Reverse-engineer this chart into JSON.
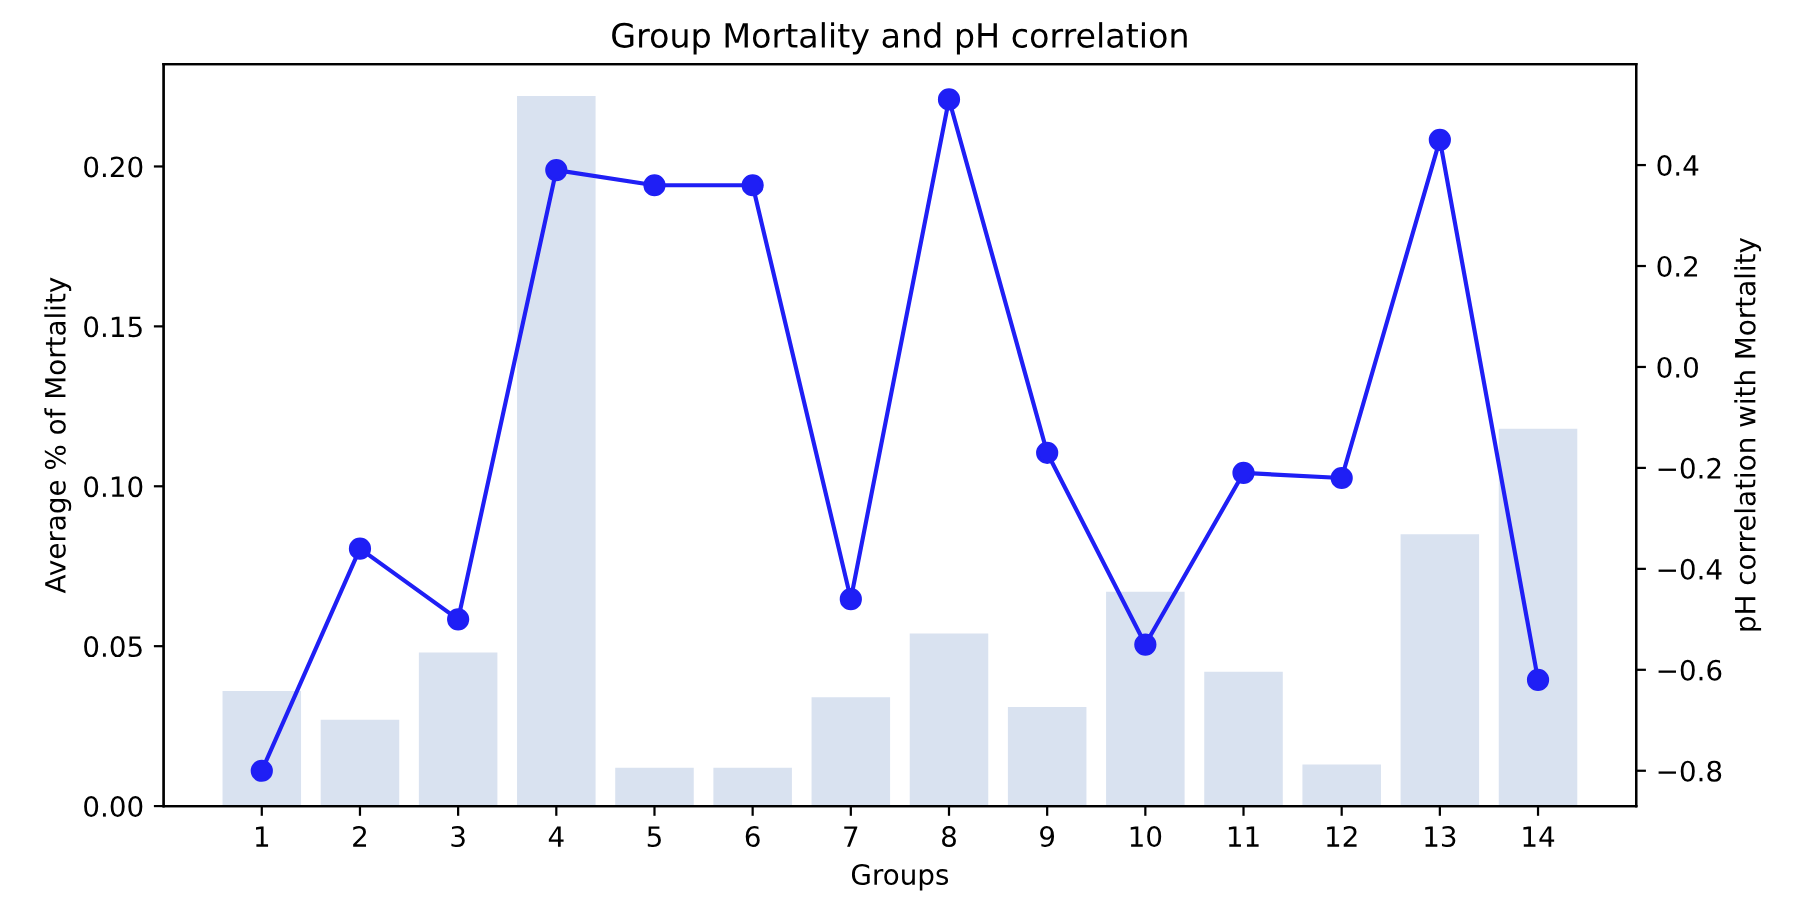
{
  "chart_data": {
    "type": "bar",
    "title": "Group Mortality and pH correlation",
    "xlabel": "Groups",
    "ylabel": "Average % of Mortality",
    "y2label": "pH correlation with Mortality",
    "categories": [
      "1",
      "2",
      "3",
      "4",
      "5",
      "6",
      "7",
      "8",
      "9",
      "10",
      "11",
      "12",
      "13",
      "14"
    ],
    "series": [
      {
        "color": "#d9e2f0",
        "values": [
          0.036,
          0.027,
          0.048,
          0.222,
          0.012,
          0.012,
          0.034,
          0.054,
          0.031,
          0.067,
          0.042,
          0.013,
          0.085,
          0.118
        ]
      },
      {
        "type": "line",
        "axis": "y2",
        "color": "#1f1ff5",
        "marker": "circle",
        "line_style": "solid",
        "values": [
          -0.8,
          -0.36,
          -0.5,
          0.39,
          0.36,
          0.36,
          -0.46,
          0.53,
          -0.17,
          -0.55,
          -0.21,
          -0.22,
          0.45,
          -0.62
        ]
      }
    ],
    "ylim": [
      0,
      0.232
    ],
    "yticks": [
      {
        "value": 0,
        "label": "0.00"
      },
      {
        "value": 0.05,
        "label": "0.05"
      },
      {
        "value": 0.1,
        "label": "0.10"
      },
      {
        "value": 0.15,
        "label": "0.15"
      },
      {
        "value": 0.2,
        "label": "0.20"
      }
    ],
    "y2lim": [
      -0.87,
      0.6
    ],
    "y2ticks": [
      -0.8,
      -0.6,
      -0.4,
      -0.2,
      {
        "value": 0,
        "label": "0.0"
      },
      0.2,
      0.4
    ],
    "grid": false,
    "legend": false
  }
}
